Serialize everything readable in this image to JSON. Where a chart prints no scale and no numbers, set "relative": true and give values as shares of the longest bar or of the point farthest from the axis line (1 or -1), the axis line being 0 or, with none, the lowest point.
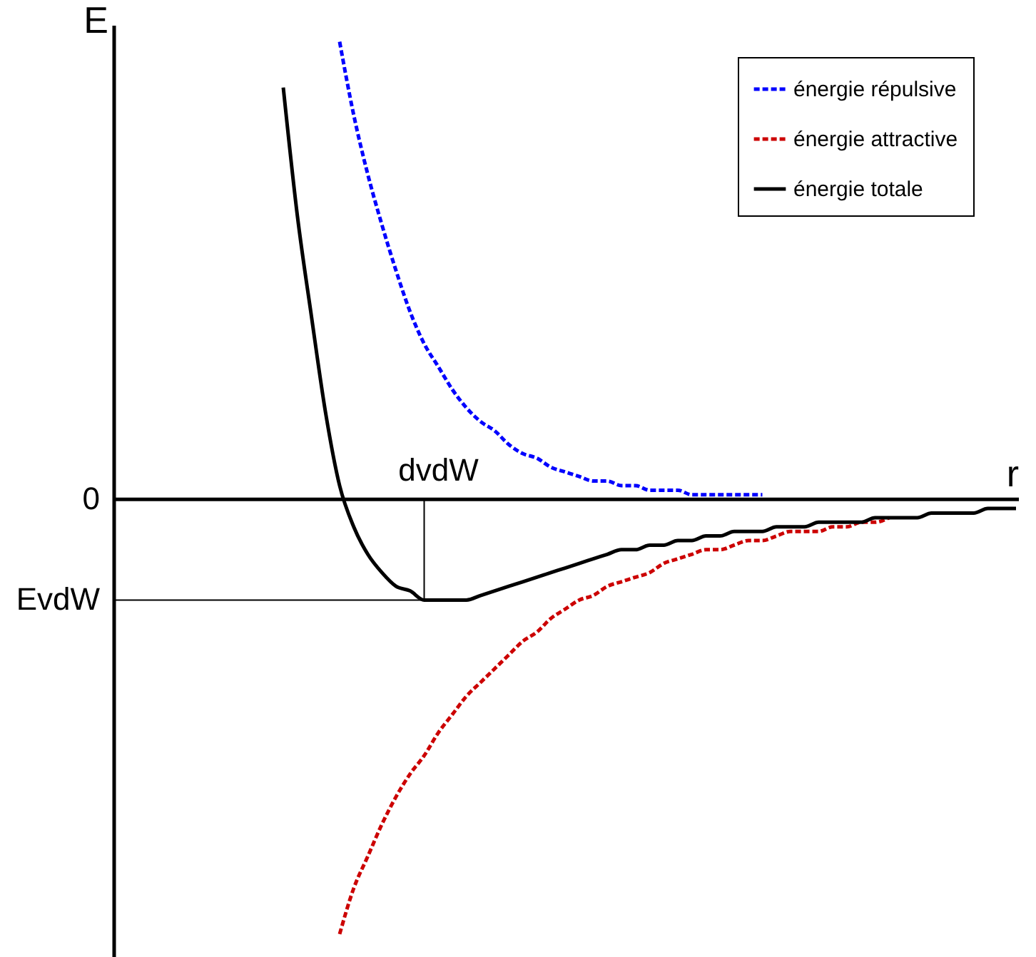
{
  "chart_data": {
    "type": "line",
    "relative": true,
    "xlabel": "r",
    "ylabel": "E",
    "categories": [
      null,
      null,
      null,
      null,
      null,
      null,
      null,
      null,
      null,
      null,
      null,
      null,
      null,
      null,
      null,
      null,
      null,
      null,
      null,
      null,
      null,
      null,
      null,
      null,
      null,
      null,
      null,
      null,
      null,
      null,
      null,
      null,
      null,
      null,
      null,
      null,
      null,
      null,
      null,
      null,
      null,
      null,
      null,
      null,
      null,
      null,
      null,
      null,
      null,
      null,
      null,
      null,
      null,
      null,
      null,
      null,
      null,
      null,
      null,
      null,
      null,
      null,
      null,
      null,
      null
    ],
    "series": [
      {
        "name": "énergie répulsive",
        "color": "#0000ff",
        "line_style": "dashed",
        "values": [
          null,
          null,
          null,
          null,
          null,
          null,
          null,
          null,
          null,
          null,
          null,
          null,
          null,
          null,
          null,
          null,
          1.0,
          0.84,
          0.71,
          0.6,
          0.5,
          0.41,
          0.34,
          0.29,
          0.24,
          0.2,
          0.17,
          0.15,
          0.12,
          0.1,
          0.09,
          0.07,
          0.06,
          0.05,
          0.04,
          0.04,
          0.03,
          0.03,
          0.02,
          0.02,
          0.02,
          0.01,
          0.01,
          0.01,
          0.01,
          0.01,
          0.01,
          null,
          null,
          null,
          null,
          null,
          null,
          null,
          null,
          null,
          null,
          null,
          null,
          null,
          null,
          null,
          null,
          null,
          null
        ]
      },
      {
        "name": "énergie attractive",
        "color": "#cc0000",
        "line_style": "dashed",
        "values": [
          null,
          null,
          null,
          null,
          null,
          null,
          null,
          null,
          null,
          null,
          null,
          null,
          null,
          null,
          null,
          null,
          -0.95,
          -0.85,
          -0.78,
          -0.71,
          -0.65,
          -0.6,
          -0.56,
          -0.51,
          -0.47,
          -0.43,
          -0.4,
          -0.37,
          -0.34,
          -0.31,
          -0.29,
          -0.26,
          -0.24,
          -0.22,
          -0.21,
          -0.19,
          -0.18,
          -0.17,
          -0.16,
          -0.14,
          -0.13,
          -0.12,
          -0.11,
          -0.11,
          -0.1,
          -0.09,
          -0.09,
          -0.08,
          -0.07,
          -0.07,
          -0.07,
          -0.06,
          -0.06,
          -0.05,
          -0.05,
          -0.04,
          null,
          null,
          null,
          null,
          null,
          null,
          null,
          null,
          null
        ]
      },
      {
        "name": "énergie totale",
        "color": "#000000",
        "line_style": "solid",
        "values": [
          null,
          null,
          null,
          null,
          null,
          null,
          null,
          null,
          null,
          null,
          null,
          null,
          0.9,
          0.62,
          0.4,
          0.19,
          0.03,
          -0.06,
          -0.12,
          -0.16,
          -0.19,
          -0.2,
          -0.22,
          -0.22,
          -0.22,
          -0.22,
          -0.21,
          -0.2,
          -0.19,
          -0.18,
          -0.17,
          -0.16,
          -0.15,
          -0.14,
          -0.13,
          -0.12,
          -0.11,
          -0.11,
          -0.1,
          -0.1,
          -0.09,
          -0.09,
          -0.08,
          -0.08,
          -0.07,
          -0.07,
          -0.07,
          -0.06,
          -0.06,
          -0.06,
          -0.05,
          -0.05,
          -0.05,
          -0.05,
          -0.04,
          -0.04,
          -0.04,
          -0.04,
          -0.03,
          -0.03,
          -0.03,
          -0.03,
          -0.02,
          -0.02,
          -0.02
        ]
      }
    ],
    "annotations": [
      "0",
      "EvdW",
      "dvdW"
    ],
    "legend": "top right"
  }
}
